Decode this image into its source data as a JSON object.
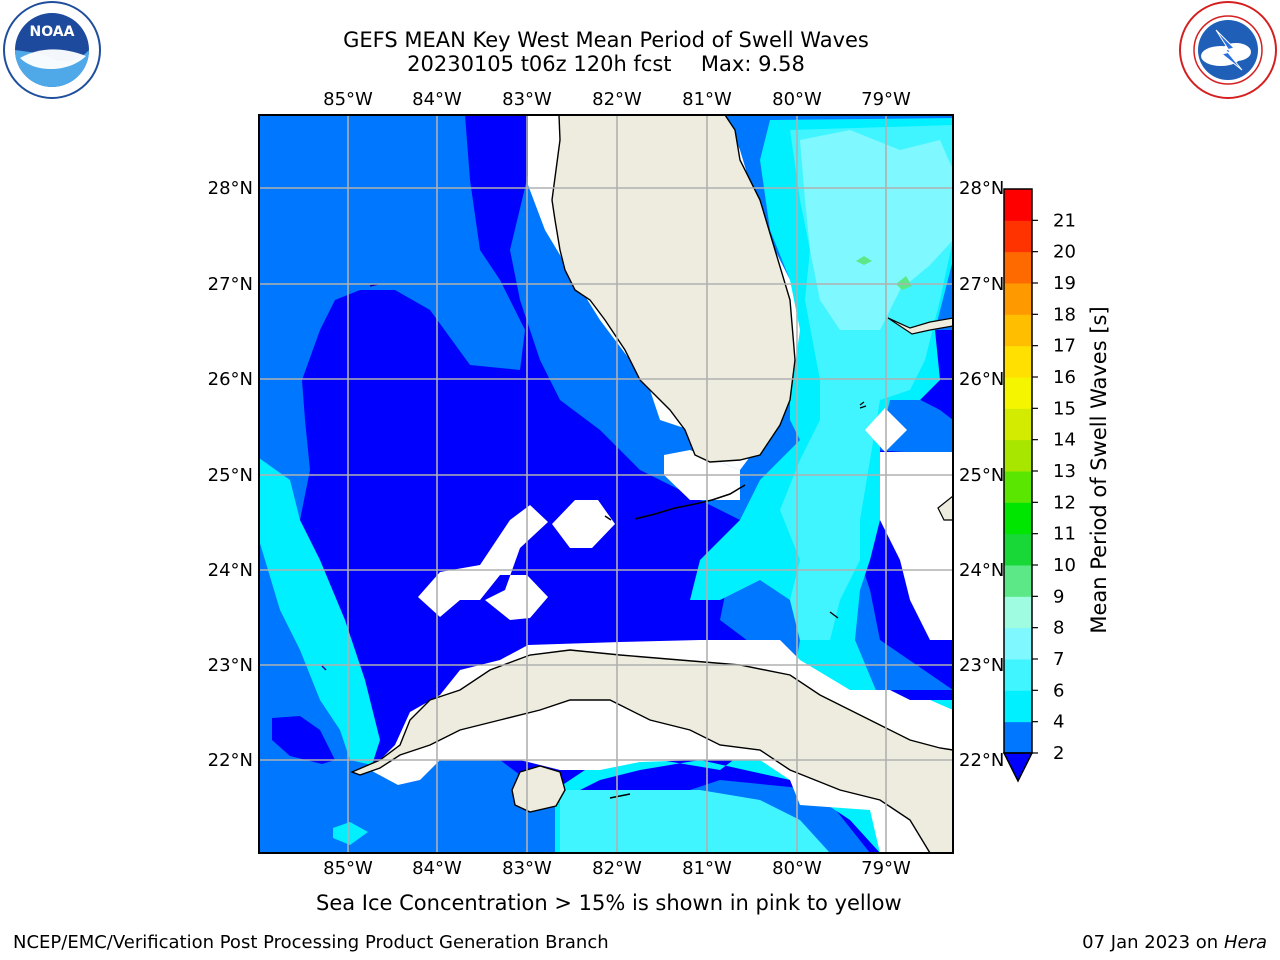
{
  "title": {
    "line1": "GEFS MEAN Key West Mean Period of Swell Waves",
    "line2_run": "20230105 t06z 120h fcst",
    "line2_max": "Max: 9.58"
  },
  "logos": {
    "left": {
      "text": "NOAA",
      "ring_text": "NATIONAL OCEANIC AND ATMOSPHERIC ADMINISTRATION · U.S. DEPARTMENT OF COMMERCE"
    },
    "right": {
      "ring_text": "NATIONAL WEATHER SERVICE"
    }
  },
  "map": {
    "lon_labels": [
      "85°W",
      "84°W",
      "83°W",
      "82°W",
      "81°W",
      "80°W",
      "79°W"
    ],
    "lat_labels": [
      "28°N",
      "27°N",
      "26°N",
      "25°N",
      "24°N",
      "23°N",
      "22°N"
    ],
    "land_color": "#edecde",
    "coast_color": "#000000",
    "grid_color": "#b0b0b0"
  },
  "colorbar": {
    "label": "Mean Period of Swell Waves [s]",
    "ticks": [
      "2",
      "4",
      "6",
      "7",
      "8",
      "9",
      "10",
      "11",
      "12",
      "13",
      "14",
      "15",
      "16",
      "17",
      "18",
      "19",
      "20",
      "21"
    ],
    "colors": [
      "#0077ff",
      "#00f0ff",
      "#40f5ff",
      "#80f8ff",
      "#a0fce0",
      "#5de887",
      "#17d837",
      "#00e600",
      "#5ae600",
      "#a8e600",
      "#d2eb00",
      "#f5f500",
      "#ffe000",
      "#ffbf00",
      "#ff9900",
      "#ff6a00",
      "#ff3300",
      "#ff0000"
    ],
    "under_color": "#0000ff"
  },
  "ice_note": "Sea Ice Concentration > 15% is shown in pink to yellow",
  "footer": {
    "left": "NCEP/EMC/Verification Post Processing Product Generation Branch",
    "right_date": "07 Jan 2023 on ",
    "right_host": "Hera"
  }
}
